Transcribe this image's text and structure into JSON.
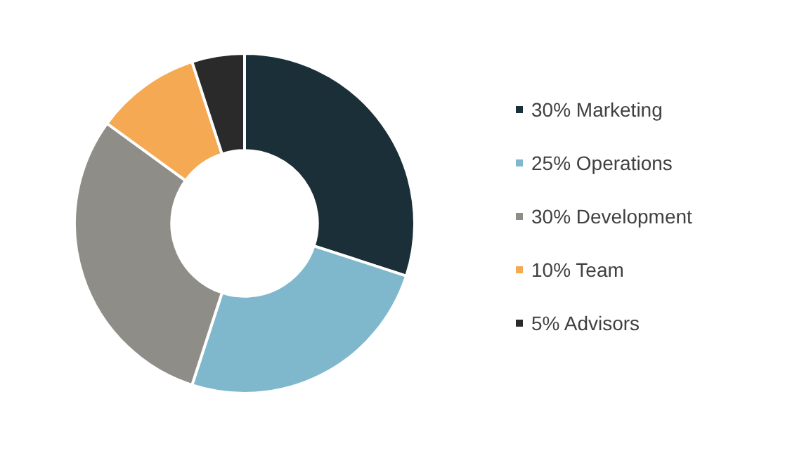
{
  "chart_data": {
    "type": "donut",
    "categories": [
      "30% Marketing",
      "25% Operations",
      "30% Development",
      "10% Team",
      "5% Advisors"
    ],
    "values": [
      30,
      25,
      30,
      10,
      5
    ],
    "colors": [
      "#1a2f38",
      "#7fb8cc",
      "#8f8d87",
      "#f4a952",
      "#2a2a2a"
    ],
    "legend": "right"
  }
}
